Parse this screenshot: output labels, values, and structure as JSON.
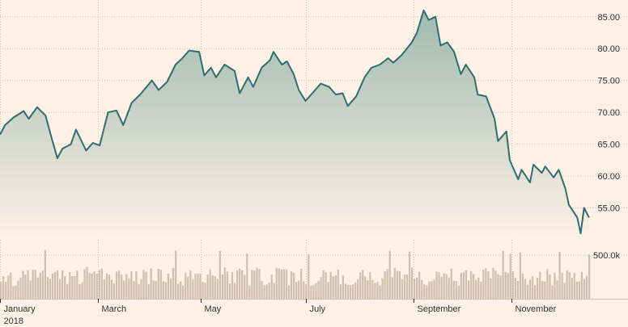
{
  "chart_data": {
    "type": "area",
    "title": "",
    "xlabel": "",
    "ylabel": "",
    "price": {
      "ylim": [
        50,
        87
      ],
      "y_ticks": [
        "55.00",
        "60.00",
        "65.00",
        "70.00",
        "75.00",
        "80.00",
        "85.00"
      ],
      "anchors": [
        [
          "2018-01-02",
          66.5
        ],
        [
          "2018-01-05",
          68.0
        ],
        [
          "2018-01-10",
          69.2
        ],
        [
          "2018-01-16",
          70.2
        ],
        [
          "2018-01-19",
          69.0
        ],
        [
          "2018-01-24",
          70.8
        ],
        [
          "2018-01-29",
          69.5
        ],
        [
          "2018-02-01",
          66.5
        ],
        [
          "2018-02-05",
          62.8
        ],
        [
          "2018-02-08",
          64.3
        ],
        [
          "2018-02-13",
          65.0
        ],
        [
          "2018-02-16",
          67.3
        ],
        [
          "2018-02-22",
          64.0
        ],
        [
          "2018-02-26",
          65.2
        ],
        [
          "2018-03-02",
          64.8
        ],
        [
          "2018-03-07",
          70.0
        ],
        [
          "2018-03-12",
          70.3
        ],
        [
          "2018-03-16",
          68.0
        ],
        [
          "2018-03-21",
          71.5
        ],
        [
          "2018-03-26",
          72.8
        ],
        [
          "2018-04-02",
          75.0
        ],
        [
          "2018-04-06",
          73.5
        ],
        [
          "2018-04-11",
          74.8
        ],
        [
          "2018-04-16",
          77.5
        ],
        [
          "2018-04-20",
          78.5
        ],
        [
          "2018-04-24",
          79.7
        ],
        [
          "2018-04-30",
          79.5
        ],
        [
          "2018-05-03",
          75.8
        ],
        [
          "2018-05-07",
          77.0
        ],
        [
          "2018-05-10",
          75.5
        ],
        [
          "2018-05-15",
          77.5
        ],
        [
          "2018-05-21",
          76.5
        ],
        [
          "2018-05-24",
          73.0
        ],
        [
          "2018-05-29",
          75.5
        ],
        [
          "2018-06-01",
          74.0
        ],
        [
          "2018-06-06",
          77.0
        ],
        [
          "2018-06-11",
          78.2
        ],
        [
          "2018-06-13",
          79.5
        ],
        [
          "2018-06-18",
          77.5
        ],
        [
          "2018-06-21",
          78.0
        ],
        [
          "2018-06-25",
          76.0
        ],
        [
          "2018-06-28",
          73.5
        ],
        [
          "2018-07-02",
          71.8
        ],
        [
          "2018-07-06",
          73.0
        ],
        [
          "2018-07-11",
          74.5
        ],
        [
          "2018-07-16",
          74.0
        ],
        [
          "2018-07-20",
          72.8
        ],
        [
          "2018-07-24",
          73.0
        ],
        [
          "2018-07-27",
          71.0
        ],
        [
          "2018-08-01",
          72.5
        ],
        [
          "2018-08-06",
          75.5
        ],
        [
          "2018-08-10",
          77.0
        ],
        [
          "2018-08-15",
          77.5
        ],
        [
          "2018-08-20",
          78.5
        ],
        [
          "2018-08-23",
          77.8
        ],
        [
          "2018-08-28",
          79.0
        ],
        [
          "2018-09-03",
          81.0
        ],
        [
          "2018-09-06",
          82.5
        ],
        [
          "2018-09-10",
          86.0
        ],
        [
          "2018-09-13",
          84.5
        ],
        [
          "2018-09-17",
          85.0
        ],
        [
          "2018-09-20",
          80.5
        ],
        [
          "2018-09-24",
          81.0
        ],
        [
          "2018-09-28",
          79.5
        ],
        [
          "2018-10-02",
          76.0
        ],
        [
          "2018-10-05",
          77.5
        ],
        [
          "2018-10-10",
          75.5
        ],
        [
          "2018-10-12",
          72.8
        ],
        [
          "2018-10-17",
          72.5
        ],
        [
          "2018-10-22",
          69.0
        ],
        [
          "2018-10-24",
          65.5
        ],
        [
          "2018-10-29",
          67.0
        ],
        [
          "2018-10-31",
          62.5
        ],
        [
          "2018-11-05",
          59.5
        ],
        [
          "2018-11-07",
          61.0
        ],
        [
          "2018-11-12",
          59.0
        ],
        [
          "2018-11-14",
          61.8
        ],
        [
          "2018-11-19",
          60.5
        ],
        [
          "2018-11-21",
          61.5
        ],
        [
          "2018-11-26",
          59.8
        ],
        [
          "2018-11-29",
          61.0
        ],
        [
          "2018-12-03",
          58.0
        ],
        [
          "2018-12-05",
          55.5
        ],
        [
          "2018-12-10",
          53.5
        ],
        [
          "2018-12-12",
          51.0
        ],
        [
          "2018-12-14",
          55.0
        ],
        [
          "2018-12-17",
          53.5
        ]
      ]
    },
    "volume": {
      "label": "500.0k",
      "label_value": 500000,
      "ylim": [
        0,
        650000
      ],
      "values": [
        192000,
        259000,
        193000,
        265000,
        301000,
        144000,
        152000,
        207000,
        244000,
        319000,
        278000,
        330000,
        209000,
        334000,
        330000,
        244000,
        299000,
        322000,
        258000,
        249000,
        230000,
        291000,
        308000,
        328000,
        226000,
        328000,
        261000,
        170000,
        305000,
        260000,
        261000,
        322000,
        170000,
        191000,
        339000,
        367000,
        294000,
        289000,
        314000,
        287000,
        330000,
        347000,
        222000,
        291000,
        278000,
        221000,
        177000,
        311000,
        322000,
        279000,
        210000,
        282000,
        235000,
        316000,
        202000,
        316000,
        171000,
        225000,
        330000,
        310000,
        170000,
        348000,
        209000,
        202000,
        344000,
        335000,
        200000,
        189000,
        288000,
        236000,
        354000,
        257000,
        171000,
        196000,
        152000,
        301000,
        255000,
        327000,
        227000,
        287000,
        289000,
        290000,
        194000,
        186000,
        279000,
        337000,
        271000,
        259000,
        229000,
        167000,
        279000,
        360000,
        313000,
        177000,
        305000,
        186000,
        326000,
        344000,
        329000,
        274000,
        211000,
        153000,
        333000,
        325000,
        359000,
        342000,
        205000,
        155000,
        164000,
        186000,
        279000,
        185000,
        356000,
        349000,
        337000,
        336000,
        338000,
        153000,
        313000,
        298000,
        193000,
        207000,
        344000,
        199000,
        167000,
        260000,
        151000,
        159000,
        180000,
        206000,
        250000,
        326000,
        302000,
        193000,
        310000,
        257000,
        271000,
        337000,
        165000,
        271000,
        172000,
        158000,
        158000,
        164000,
        189000,
        223000,
        303000,
        330000,
        256000,
        213000,
        305000,
        216000,
        183000,
        197000,
        150000,
        237000,
        315000,
        342000,
        165000,
        247000,
        357000,
        319000,
        317000,
        225000,
        279000,
        278000,
        321000,
        360000,
        228000,
        244000,
        310000,
        218000,
        165000,
        155000,
        199000,
        203000,
        220000,
        312000,
        304000,
        249000,
        292000,
        281000,
        244000,
        347000,
        207000,
        204000,
        150000,
        296000,
        307000,
        324000,
        211000,
        317000,
        284000,
        217000,
        244000,
        196000,
        335000,
        351000,
        314000,
        233000,
        356000,
        324000,
        283000,
        267000,
        164000,
        308000,
        296000,
        270000,
        315000,
        240000,
        204000,
        285000,
        289000,
        227000,
        161000,
        221000,
        258000,
        155000,
        241000,
        311000,
        204000,
        199000,
        341000,
        278000,
        153000,
        297000,
        210000,
        219000,
        300000,
        182000,
        327000,
        304000,
        242000,
        296000,
        197000,
        202000,
        309000,
        225000,
        263000
      ],
      "spikes": [
        [
          18,
          560000
        ],
        [
          71,
          555000
        ],
        [
          89,
          548000
        ],
        [
          100,
          517000
        ],
        [
          125,
          514000
        ],
        [
          158,
          552000
        ],
        [
          166,
          542000
        ],
        [
          204,
          550000
        ],
        [
          207,
          516000
        ],
        [
          211,
          532000
        ],
        [
          227,
          538000
        ],
        [
          239,
          509000
        ]
      ]
    },
    "x_axis": {
      "range": [
        "2018-01-02",
        "2018-12-18"
      ],
      "ticks": [
        {
          "date": "2018-01-02",
          "label": "January",
          "sublabel": "2018"
        },
        {
          "date": "2018-03-01",
          "label": "March"
        },
        {
          "date": "2018-05-01",
          "label": "May"
        },
        {
          "date": "2018-07-02",
          "label": "July"
        },
        {
          "date": "2018-09-04",
          "label": "September"
        },
        {
          "date": "2018-11-01",
          "label": "November"
        }
      ]
    },
    "grid": true,
    "colors": {
      "background": "#fff1e5",
      "line": "#2f6d6f",
      "area_top": "#9fbab1",
      "area_bottom": "#fff1e5",
      "volume_bar": "#cfbfae",
      "grid": "#cfc3b6",
      "text": "#33302e"
    }
  }
}
